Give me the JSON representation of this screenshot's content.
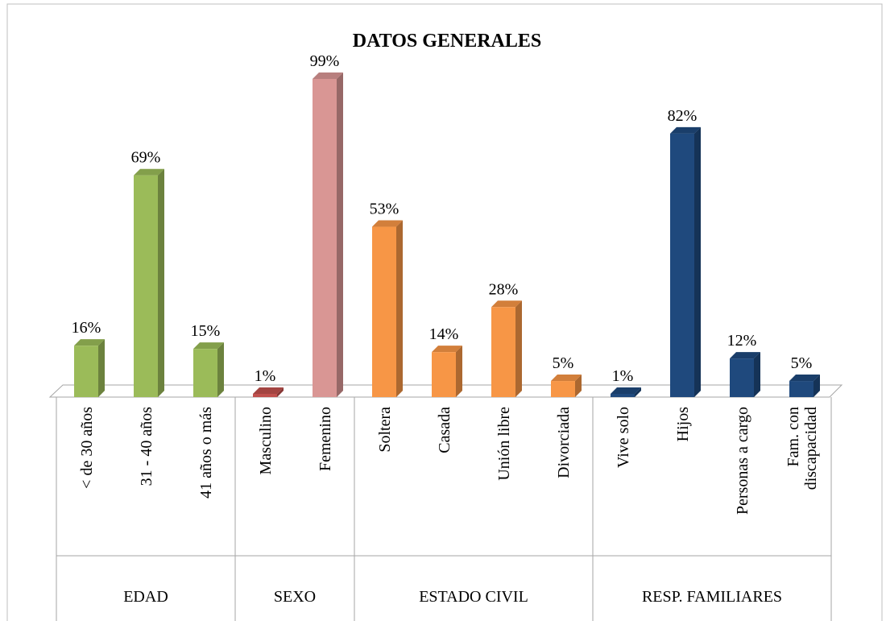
{
  "chart_data": {
    "type": "bar3d",
    "title": "DATOS GENERALES",
    "groups": [
      {
        "name": "EDAD",
        "categories": [
          "< de 30 años",
          "31 - 40 años",
          "41 años o más"
        ],
        "values": [
          16,
          69,
          15
        ],
        "value_labels": [
          "16%",
          "69%",
          "15%"
        ],
        "colors": [
          "#9bbb59",
          "#9bbb59",
          "#9bbb59"
        ]
      },
      {
        "name": "SEXO",
        "categories": [
          "Masculino",
          "Femenino"
        ],
        "values": [
          1,
          99
        ],
        "value_labels": [
          "1%",
          "99%"
        ],
        "colors": [
          "#c0504d",
          "#d99694"
        ]
      },
      {
        "name": "ESTADO CIVIL",
        "categories": [
          "Soltera",
          "Casada",
          "Unión libre",
          "Divorciada"
        ],
        "values": [
          53,
          14,
          28,
          5
        ],
        "value_labels": [
          "53%",
          "14%",
          "28%",
          "5%"
        ],
        "colors": [
          "#f79646",
          "#f79646",
          "#f79646",
          "#f79646"
        ]
      },
      {
        "name": "RESP. FAMILIARES",
        "categories": [
          "Vive solo",
          "Hijos",
          "Personas a cargo",
          "Fam. con discapacidad"
        ],
        "values": [
          1,
          82,
          12,
          5
        ],
        "value_labels": [
          "1%",
          "82%",
          "12%",
          "5%"
        ],
        "colors": [
          "#1f497d",
          "#1f497d",
          "#1f497d",
          "#1f497d"
        ]
      }
    ]
  }
}
